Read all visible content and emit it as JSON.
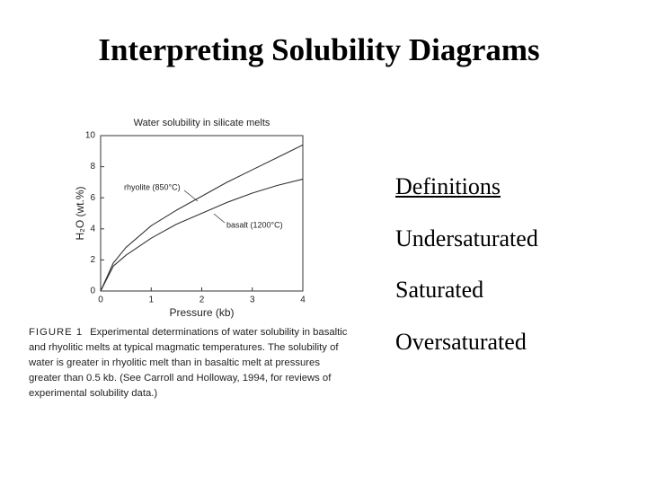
{
  "title": "Interpreting Solubility Diagrams",
  "chart_data": {
    "type": "line",
    "title": "Water solubility in silicate melts",
    "xlabel": "Pressure (kb)",
    "ylabel": "H₂O (wt.%)",
    "x": [
      0,
      0.25,
      0.5,
      1,
      1.5,
      2,
      2.5,
      3,
      3.5,
      4
    ],
    "series": [
      {
        "name": "rhyolite (850°C)",
        "color": "#333333",
        "values": [
          0,
          1.8,
          2.8,
          4.2,
          5.2,
          6.1,
          7.0,
          7.8,
          8.6,
          9.4
        ]
      },
      {
        "name": "basalt (1200°C)",
        "color": "#333333",
        "values": [
          0,
          1.6,
          2.3,
          3.4,
          4.3,
          5.0,
          5.7,
          6.3,
          6.8,
          7.2
        ]
      }
    ],
    "xlim": [
      0,
      4
    ],
    "xticks": [
      0,
      1,
      2,
      3,
      4
    ],
    "ylim": [
      0,
      10
    ],
    "yticks": [
      0,
      2,
      4,
      6,
      8,
      10
    ]
  },
  "caption": {
    "label": "FIGURE 1",
    "text": "Experimental determinations of water solubility in basaltic and rhyolitic melts at typical magmatic temperatures. The solubility of water is greater in rhyolitic melt than in basaltic melt at pressures greater than 0.5 kb. (See Carroll and Holloway, 1994, for reviews of experimental solubility data.)"
  },
  "definitions": {
    "heading": "Definitions",
    "items": [
      "Undersaturated",
      "Saturated",
      "Oversaturated"
    ]
  }
}
